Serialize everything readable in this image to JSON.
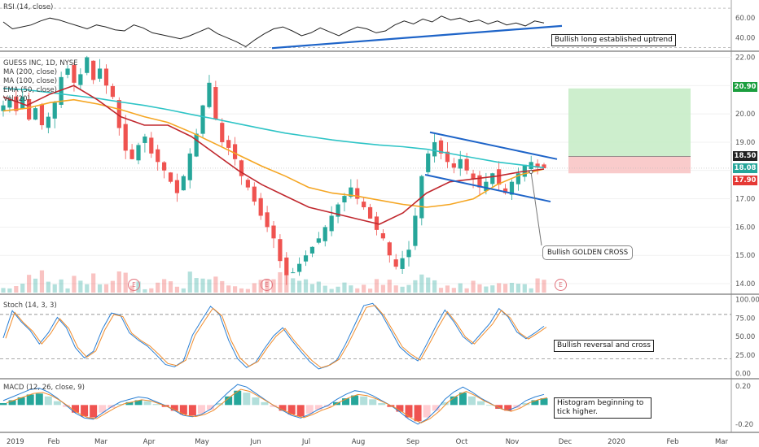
{
  "chart_data": {
    "type": "candlestick",
    "symbol_title": "GUESS INC, 1D, NYSE",
    "x_ticks": [
      "2019",
      "Feb",
      "Mar",
      "Apr",
      "May",
      "Jun",
      "Jul",
      "Aug",
      "Sep",
      "Oct",
      "Nov",
      "Dec",
      "2020",
      "Feb",
      "Mar"
    ],
    "price_axis": {
      "ticks": [
        "22.00",
        "21.00",
        "20.00",
        "19.00",
        "18.00",
        "17.00",
        "16.00",
        "15.00",
        "14.00"
      ],
      "range": [
        13.8,
        22.1
      ]
    },
    "price_tags": [
      {
        "label": "20.90",
        "value": 20.9,
        "bg": "#1b9e3e"
      },
      {
        "label": "18.50",
        "value": 18.5,
        "bg": "#222222"
      },
      {
        "label": "18.08",
        "value": 18.08,
        "bg": "#26a69a"
      },
      {
        "label": "17.90",
        "value": 17.9,
        "bg": "#e53935"
      }
    ],
    "legend_main": [
      "GUESS INC, 1D, NYSE",
      "MA (200, close)",
      "MA (100, close)",
      "EMA (50, close)",
      "Vol (20)"
    ],
    "approx_closes": [
      20.3,
      20.5,
      20.1,
      20.6,
      19.8,
      20.2,
      19.6,
      19.9,
      20.4,
      21.3,
      21.6,
      21.1,
      21.4,
      22.0,
      21.2,
      21.6,
      21.0,
      20.6,
      19.5,
      18.7,
      18.4,
      18.9,
      19.2,
      18.6,
      18.3,
      18.0,
      17.6,
      17.2,
      17.8,
      18.6,
      19.3,
      20.3,
      21.1,
      19.8,
      19.0,
      18.8,
      18.4,
      17.8,
      17.4,
      16.9,
      16.4,
      16.0,
      15.6,
      14.8,
      14.3,
      14.4,
      14.7,
      15.0,
      15.3,
      15.6,
      16.0,
      16.4,
      16.8,
      17.1,
      17.4,
      17.0,
      16.7,
      16.3,
      15.9,
      15.6,
      15.0,
      14.6,
      14.9,
      15.2,
      16.4,
      17.8,
      18.6,
      19.0,
      18.6,
      18.3,
      18.1,
      18.4,
      18.0,
      17.7,
      17.4,
      17.6,
      17.9,
      17.5,
      17.2,
      17.6,
      17.9,
      18.2,
      18.3,
      18.1,
      18.08
    ],
    "lines": [
      {
        "name": "MA (200, close)",
        "color": "#2ec4c6",
        "values": [
          20.9,
          20.85,
          20.75,
          20.65,
          20.55,
          20.42,
          20.3,
          20.15,
          19.98,
          19.82,
          19.65,
          19.48,
          19.32,
          19.2,
          19.08,
          18.98,
          18.9,
          18.84,
          18.75,
          18.6,
          18.45,
          18.3,
          18.2,
          18.1
        ]
      },
      {
        "name": "MA (100, close)",
        "color": "#f5a623",
        "values": [
          20.1,
          20.2,
          20.4,
          20.5,
          20.35,
          20.15,
          19.9,
          19.7,
          19.35,
          18.95,
          18.55,
          18.15,
          17.8,
          17.4,
          17.2,
          17.1,
          16.95,
          16.8,
          16.7,
          16.8,
          17.0,
          17.5,
          17.85,
          18.05
        ]
      },
      {
        "name": "EMA (50, close)",
        "color": "#c0282e",
        "values": [
          20.6,
          20.3,
          20.7,
          21.0,
          20.5,
          19.9,
          19.6,
          19.6,
          19.2,
          18.6,
          18.0,
          17.5,
          17.1,
          16.7,
          16.5,
          16.3,
          16.1,
          16.5,
          17.2,
          17.6,
          17.7,
          17.8,
          17.95,
          18.05
        ]
      }
    ],
    "rsi": {
      "label": "RSI (14, close)",
      "ticks": [
        "60.00",
        "40.00"
      ],
      "range": [
        28,
        75
      ],
      "values": [
        56,
        49,
        51,
        53,
        57,
        60,
        58,
        55,
        52,
        49,
        53,
        51,
        48,
        47,
        53,
        50,
        45,
        43,
        41,
        39,
        42,
        46,
        50,
        44,
        40,
        36,
        31,
        38,
        44,
        49,
        51,
        47,
        42,
        45,
        50,
        46,
        42,
        47,
        51,
        49,
        45,
        47,
        53,
        57,
        54,
        59,
        56,
        62,
        58,
        60,
        56,
        58,
        54,
        57,
        53,
        55,
        52,
        57,
        55
      ]
    },
    "stoch": {
      "label": "Stoch (14, 3, 3)",
      "ticks": [
        "100.00",
        "75.00",
        "50.00",
        "25.00",
        "0.00"
      ],
      "range": [
        -5,
        103
      ],
      "k": [
        48,
        85,
        70,
        58,
        40,
        55,
        76,
        62,
        35,
        21,
        30,
        60,
        82,
        79,
        55,
        45,
        37,
        25,
        12,
        9,
        17,
        52,
        72,
        91,
        80,
        45,
        20,
        8,
        15,
        34,
        51,
        62,
        45,
        30,
        16,
        6,
        10,
        18,
        40,
        66,
        92,
        95,
        80,
        58,
        36,
        25,
        17,
        40,
        64,
        86,
        70,
        50,
        40,
        54,
        68,
        88,
        77,
        56,
        47,
        55,
        64
      ]
    },
    "macd": {
      "label": "MACD (12, 26, close, 9)",
      "ticks": [
        "0.20",
        "-0.20"
      ],
      "range": [
        -0.27,
        0.25
      ],
      "hist": [
        0.02,
        0.05,
        0.08,
        0.11,
        0.12,
        0.09,
        0.04,
        -0.02,
        -0.08,
        -0.12,
        -0.13,
        -0.08,
        -0.03,
        0.01,
        0.03,
        0.05,
        0.04,
        0.01,
        -0.02,
        -0.06,
        -0.1,
        -0.11,
        -0.09,
        -0.05,
        0.02,
        0.09,
        0.15,
        0.13,
        0.08,
        0.03,
        -0.02,
        -0.06,
        -0.1,
        -0.12,
        -0.09,
        -0.05,
        -0.02,
        0.03,
        0.07,
        0.1,
        0.09,
        0.06,
        0.02,
        -0.02,
        -0.07,
        -0.13,
        -0.17,
        -0.13,
        -0.06,
        0.03,
        0.09,
        0.13,
        0.09,
        0.04,
        0.0,
        -0.04,
        -0.06,
        -0.03,
        0.02,
        0.05,
        0.07
      ]
    }
  },
  "annotations": {
    "rsi_note": "Bullish long established uptrend",
    "golden_cross_note": "Bullish GOLDEN CROSS",
    "stoch_note": "Bullish reversal and cross",
    "macd_note": "Histogram beginning to tick higher.",
    "earnings_marker": "E"
  },
  "colors": {
    "up": "#26a69a",
    "down": "#ef5350",
    "trendline": "#1e64c8",
    "target_zone": "#c8ecc8",
    "stop_zone": "#f8c5c5"
  }
}
